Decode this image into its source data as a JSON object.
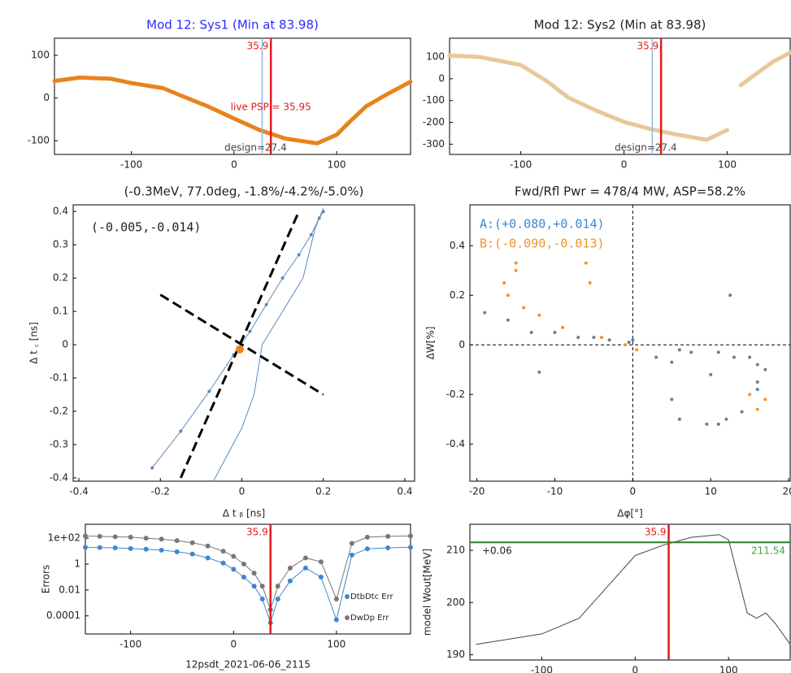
{
  "chart_data": [
    {
      "type": "line",
      "title": "Mod 12: Sys1 (Min at 83.98)",
      "title_color": "#2a2aff",
      "xlim": [
        -175,
        172
      ],
      "ylim": [
        -132,
        140
      ],
      "xticks": [
        -100,
        0,
        100
      ],
      "yticks": [
        100,
        0,
        -100
      ],
      "x": [
        -175,
        -150,
        -120,
        -100,
        -69,
        -50,
        -25,
        0,
        25,
        50,
        81,
        100,
        115,
        129,
        150,
        172
      ],
      "series": [
        {
          "color": "#e8831c",
          "line_width": 5,
          "values": [
            40,
            48,
            45,
            35,
            23,
            4,
            -20,
            -48,
            -75,
            -95,
            -106,
            -86,
            -50,
            -19,
            10,
            38
          ]
        }
      ],
      "markers": {
        "design": 27.4,
        "live": 35.9
      },
      "live_label": "live PSP = 35.95",
      "design_label": "design=27.4"
    },
    {
      "type": "line",
      "title": "Mod 12: Sys2 (Min at 83.98)",
      "title_color": "#222222",
      "xlim": [
        -169,
        161
      ],
      "ylim": [
        -347,
        186
      ],
      "xticks": [
        -100,
        0,
        100
      ],
      "yticks": [
        100,
        0,
        -100,
        -200,
        -300
      ],
      "x": [
        -169,
        -140,
        -100,
        -75,
        -54,
        -25,
        0,
        25,
        49,
        80,
        100,
        105,
        113,
        130,
        145,
        161
      ],
      "series": [
        {
          "color": "#e8c89a",
          "line_width": 5,
          "values": [
            107,
            100,
            63,
            -10,
            -86,
            -150,
            -198,
            -230,
            -254,
            -280,
            -235,
            null,
            -30,
            30,
            80,
            120
          ]
        }
      ],
      "markers": {
        "design": 27.4,
        "live": 35.9
      },
      "design_label": "design=27.4"
    },
    {
      "type": "line",
      "title": "(-0.3MeV, 77.0deg, -1.8%/-4.2%/-5.0%)",
      "title_color": "#222222",
      "xlabel": "Δ t ᵦ [ns]",
      "ylabel": "Δ t ꜀ [ns]",
      "xlim": [
        -0.414,
        0.424
      ],
      "ylim": [
        -0.41,
        0.42
      ],
      "xticks": [
        -0.4,
        -0.2,
        0,
        0.2,
        0.4
      ],
      "yticks": [
        0.4,
        0.3,
        0.2,
        0.1,
        0,
        -0.1,
        -0.2,
        -0.3,
        -0.4
      ],
      "series": [
        {
          "color": "#5b8bb8",
          "line_width": 1,
          "marker": true,
          "marker_size": 2,
          "x": [
            -0.22,
            -0.15,
            -0.08,
            -0.02,
            0.02,
            0.06,
            0.1,
            0.14,
            0.17,
            0.19,
            0.2
          ],
          "values": [
            -0.37,
            -0.26,
            -0.14,
            -0.03,
            0.04,
            0.12,
            0.2,
            0.27,
            0.33,
            0.38,
            0.4
          ]
        },
        {
          "color": "#5b8bb8",
          "line_width": 1,
          "x": [
            -0.07,
            0.0,
            0.03,
            0.05,
            0.1,
            0.15,
            0.18,
            0.2
          ],
          "values": [
            -0.41,
            -0.25,
            -0.15,
            0.0,
            0.1,
            0.2,
            0.35,
            0.41
          ]
        }
      ],
      "guides": [
        {
          "x": [
            -0.15,
            0.14
          ],
          "values": [
            -0.4,
            0.4
          ]
        },
        {
          "x": [
            -0.2,
            0.2
          ],
          "values": [
            0.15,
            -0.15
          ]
        }
      ],
      "center": {
        "x": -0.005,
        "value": -0.014
      },
      "annotation": "(-0.005,-0.014)"
    },
    {
      "type": "scatter",
      "title": "Fwd/Rfl Pwr = 478/4 MW, ASP=58.2%",
      "title_color": "#222222",
      "xlabel": "Δφ[°]",
      "ylabel": "ΔW[%]",
      "zero_lines": true,
      "xlim": [
        -20.9,
        20.2
      ],
      "ylim": [
        -0.55,
        0.565
      ],
      "xticks": [
        -20,
        -10,
        0,
        10,
        20
      ],
      "yticks": [
        0.4,
        0.2,
        0,
        -0.2,
        -0.4
      ],
      "series": [
        {
          "color": "#f0932b",
          "x": [
            -16.5,
            -15,
            -15,
            -16,
            -14,
            -12,
            -9,
            -6,
            -5.5,
            -4,
            -1,
            0.5,
            15,
            16,
            17
          ],
          "values": [
            0.25,
            0.33,
            0.3,
            0.2,
            0.15,
            0.12,
            0.07,
            0.33,
            0.25,
            0.03,
            0,
            -0.02,
            -0.2,
            -0.26,
            -0.22
          ]
        },
        {
          "color": "#7a7a7a",
          "x": [
            -19,
            -16,
            -13,
            -10,
            -7,
            -5,
            -3,
            -0.5,
            3,
            5,
            6,
            7.5,
            10,
            11,
            12.5,
            13,
            15,
            16,
            17,
            16,
            5,
            6,
            9.5,
            11,
            12,
            14,
            -12
          ],
          "values": [
            0.13,
            0.1,
            0.05,
            0.05,
            0.03,
            0.03,
            0.02,
            0.01,
            -0.05,
            -0.07,
            -0.02,
            -0.03,
            -0.12,
            -0.03,
            0.2,
            -0.05,
            -0.05,
            -0.08,
            -0.1,
            -0.15,
            -0.22,
            -0.3,
            -0.32,
            -0.32,
            -0.3,
            -0.27,
            -0.11
          ]
        },
        {
          "color": "#3f86d0",
          "x": [
            16,
            0
          ],
          "values": [
            -0.18,
            0.02
          ]
        }
      ],
      "annotations": [
        {
          "text": "A:(+0.080,+0.014)",
          "color": "#3f86d0"
        },
        {
          "text": "B:(-0.090,-0.013)",
          "color": "#f0932b"
        }
      ]
    },
    {
      "type": "line",
      "ylabel": "Errors",
      "xlabel": "12psdt_2021-06-06_2115",
      "ylog": true,
      "legend": "lower right",
      "xlim": [
        -144,
        172
      ],
      "ylim": [
        4e-06,
        1200
      ],
      "xticks": [
        -100,
        0,
        100
      ],
      "yticks": [
        {
          "value": 100,
          "label": "1e+02"
        },
        1,
        0.01,
        0.0001
      ],
      "x": [
        -144,
        -130,
        -115,
        -100,
        -85,
        -70,
        -55,
        -40,
        -25,
        -10,
        0,
        10,
        20,
        28,
        35.9,
        43,
        55,
        70,
        85,
        100,
        115,
        130,
        150,
        172
      ],
      "series": [
        {
          "name": "DwDp Err",
          "color": "#777777",
          "line_width": 1,
          "marker": true,
          "marker_size": 3,
          "values": [
            150,
            140,
            130,
            120,
            100,
            85,
            65,
            45,
            25,
            10,
            4,
            1,
            0.2,
            0.02,
            0.0003,
            0.02,
            0.5,
            3,
            1.5,
            0.002,
            40,
            120,
            140,
            150
          ]
        },
        {
          "name": "DtbDtc Err",
          "color": "#3f86d0",
          "line_width": 1,
          "marker": true,
          "marker_size": 3,
          "values": [
            20,
            19,
            18,
            16,
            14,
            12,
            9,
            6,
            3,
            1.2,
            0.4,
            0.1,
            0.02,
            0.002,
            3e-05,
            0.002,
            0.05,
            0.5,
            0.1,
            5e-05,
            5,
            15,
            18,
            20
          ]
        }
      ],
      "markers": {
        "live": 35.9
      }
    },
    {
      "type": "line",
      "ylabel": "model Wout[MeV]",
      "xlim": [
        -177,
        166
      ],
      "ylim": [
        189,
        215
      ],
      "xticks": [
        -100,
        0,
        100
      ],
      "yticks": [
        210,
        200,
        190
      ],
      "x": [
        -170,
        -100,
        -60,
        -30,
        0,
        30,
        60,
        90,
        100,
        110,
        120,
        130,
        140,
        150,
        166
      ],
      "series": [
        {
          "color": "#444444",
          "line_width": 1,
          "values": [
            192,
            194,
            197,
            203,
            209,
            211,
            212.5,
            213,
            212,
            205,
            198,
            197,
            198,
            196,
            192
          ]
        }
      ],
      "markers": {
        "live": 35.9
      },
      "hline": 211.54,
      "hline_color": "#2e7d2e",
      "annotation": "+0.06"
    }
  ]
}
